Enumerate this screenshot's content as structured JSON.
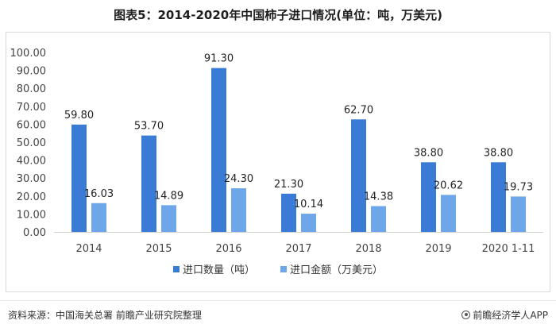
{
  "title": "图表5：2014-2020年中国柿子进口情况(单位：吨，万美元)",
  "source": "资料来源：中国海关总署 前瞻产业研究院整理",
  "brand": "前瞻经济学人APP",
  "colors": {
    "series_quantity": "#3a7bd5",
    "series_amount": "#6ea6ea"
  },
  "chart_data": {
    "type": "bar",
    "categories": [
      "2014",
      "2015",
      "2016",
      "2017",
      "2018",
      "2019",
      "2020 1-11"
    ],
    "series": [
      {
        "name": "进口数量（吨）",
        "values": [
          59.8,
          53.7,
          91.3,
          21.3,
          62.7,
          38.8,
          38.8
        ]
      },
      {
        "name": "进口金额（万美元）",
        "values": [
          16.03,
          14.89,
          24.3,
          10.14,
          14.38,
          20.62,
          19.73
        ]
      }
    ],
    "yticks": [
      "0.00",
      "10.00",
      "20.00",
      "30.00",
      "40.00",
      "50.00",
      "60.00",
      "70.00",
      "80.00",
      "90.00",
      "100.00"
    ],
    "ylim": [
      0,
      100
    ],
    "grid": false,
    "legend_position": "bottom"
  }
}
